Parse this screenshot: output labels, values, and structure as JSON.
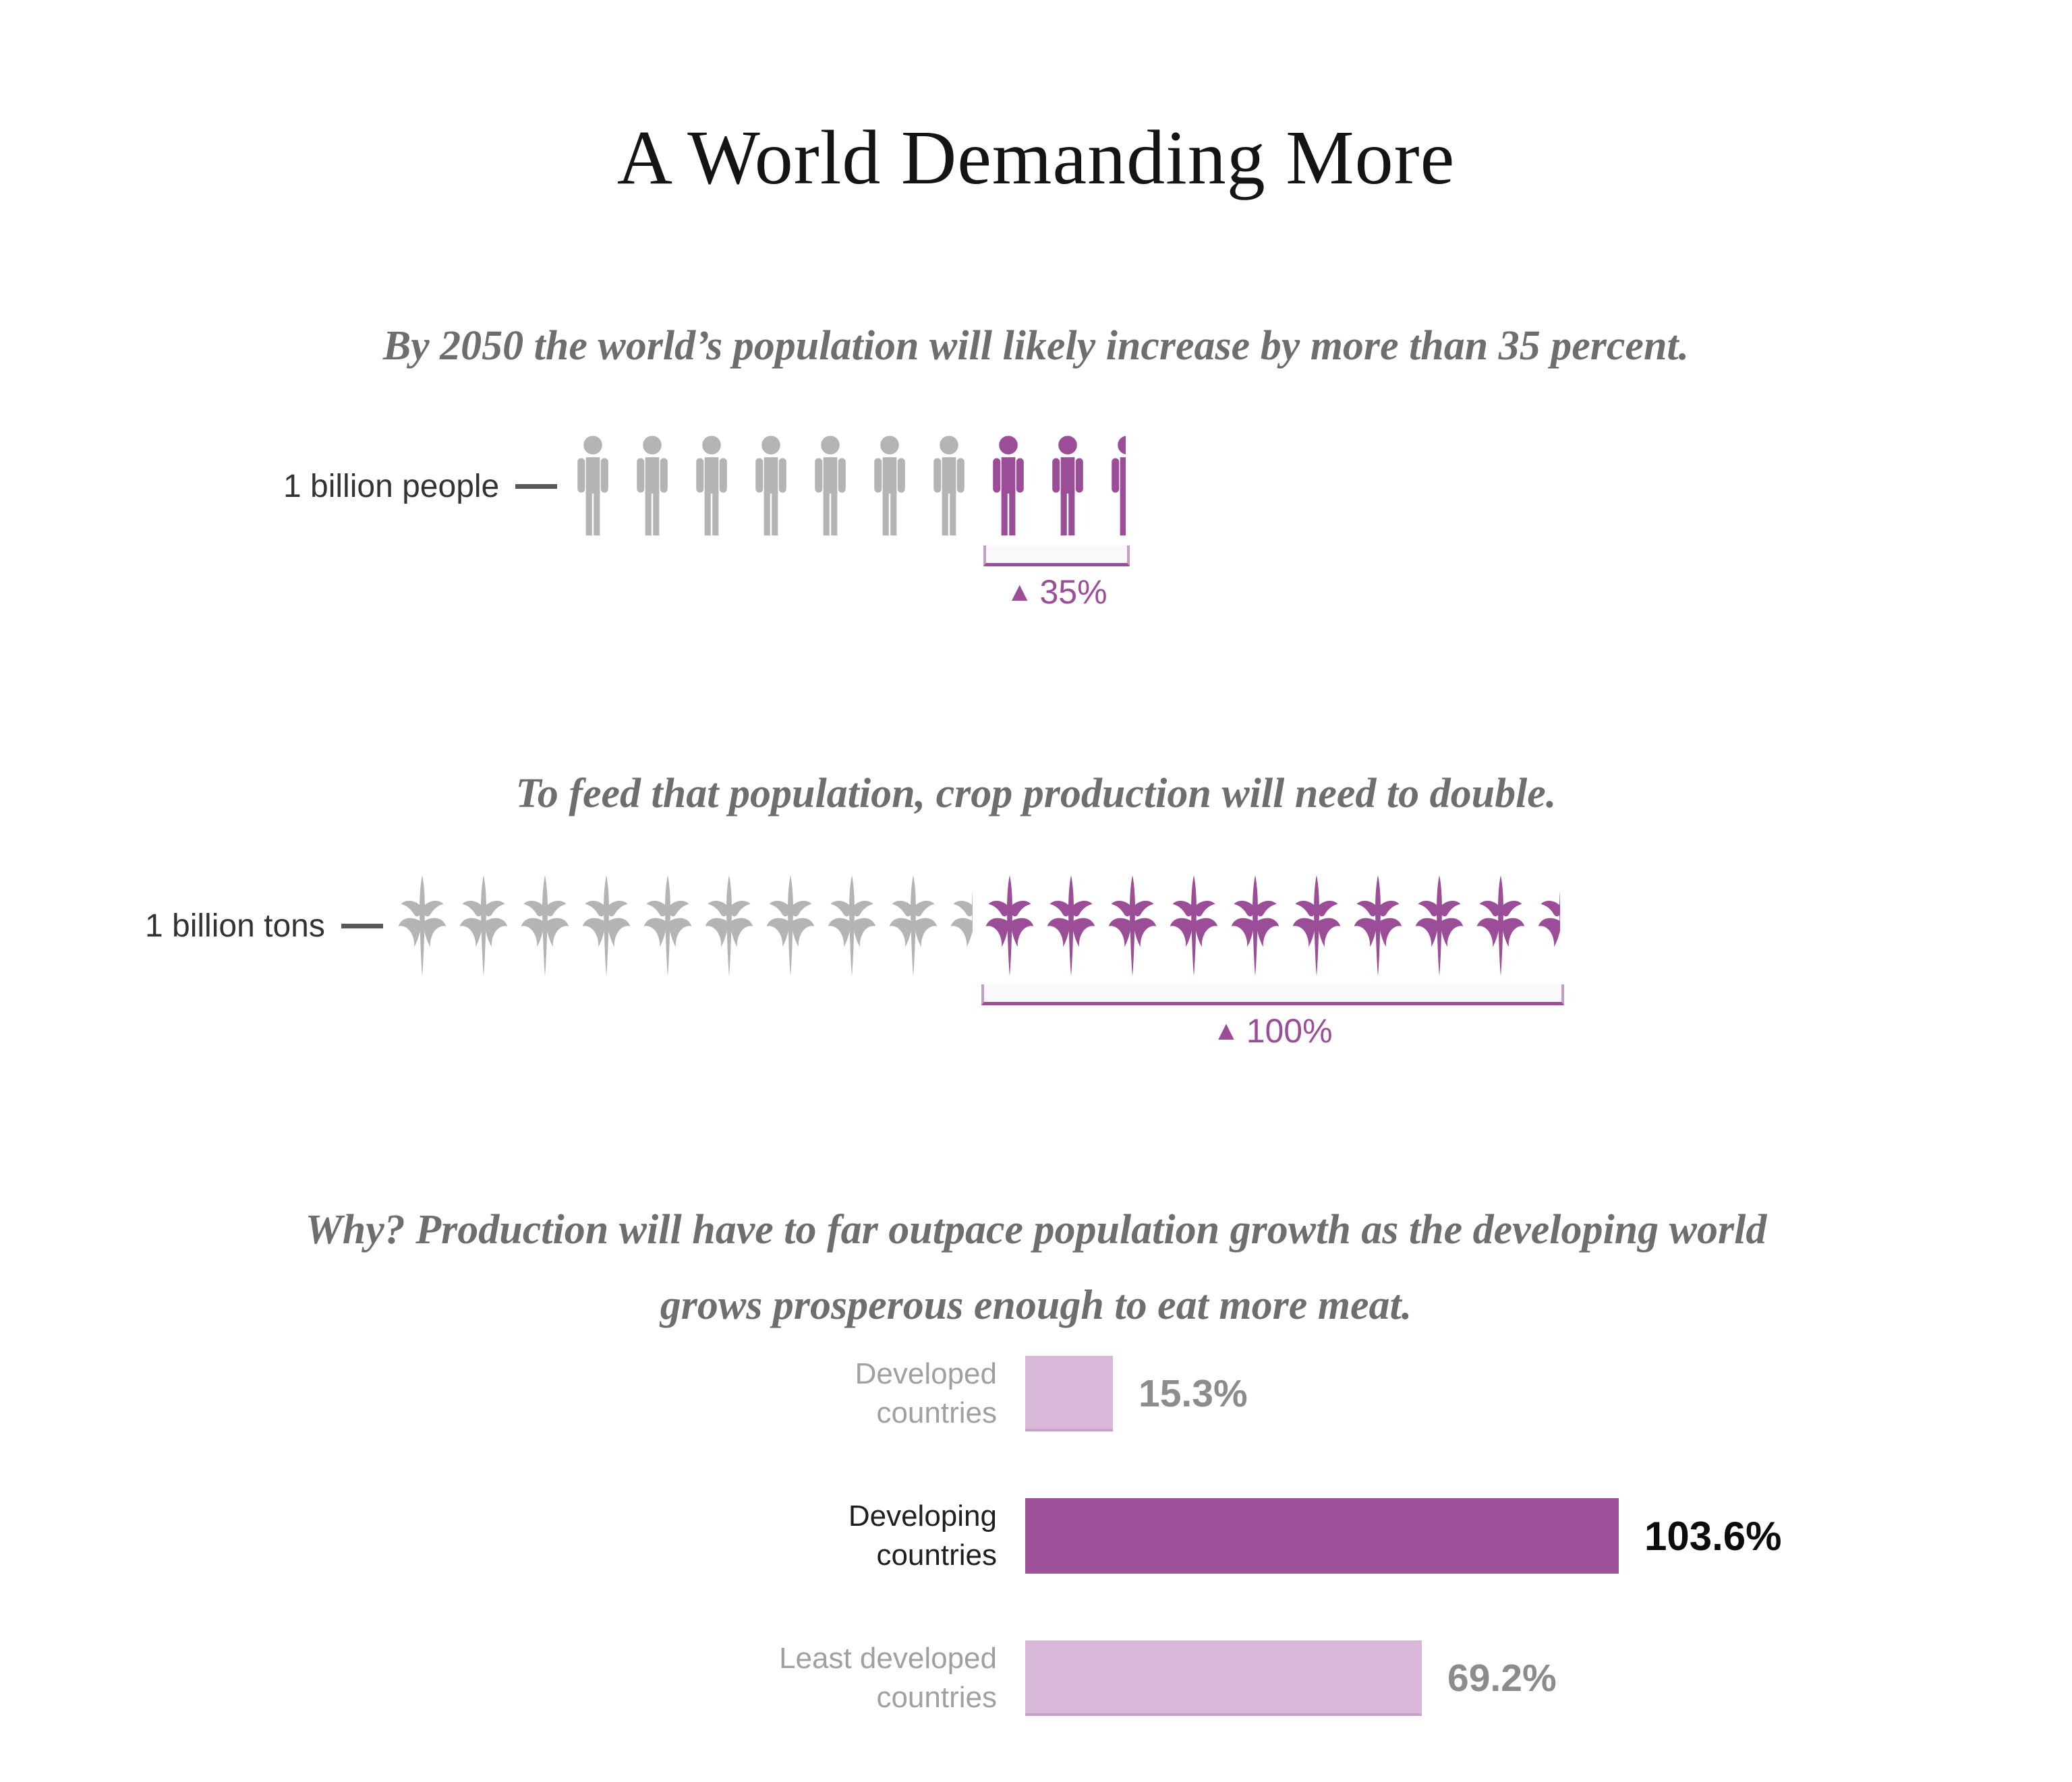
{
  "page": {
    "title": "A World Demanding More"
  },
  "texts": {
    "why_line1": "Why? Production will have to far outpace population growth as the developing world",
    "why_line2": "grows prosperous enough to eat more meat."
  },
  "colors": {
    "accent_purple": "#9b4d97",
    "dark_bar_purple": "#9d519a",
    "light_bar_purple": "#d8b7d9",
    "icon_gray": "#b4b3b6",
    "subtitle_gray": "#6e6e6e"
  },
  "chart_data": [
    {
      "id": "population-growth",
      "type": "pictograph",
      "title": "By 2050 the world’s population will likely increase by more than 35 percent.",
      "unit_label": "1 billion people",
      "icon": "person",
      "icon_unit_value": "1 billion people per icon",
      "series": [
        {
          "name": "current population",
          "count": 7,
          "color": "#b4b3b6"
        },
        {
          "name": "increase by 2050",
          "count": 2.5,
          "color": "#9b4d97"
        }
      ],
      "annotation": {
        "arrow": "▲",
        "text": "35%"
      }
    },
    {
      "id": "crop-production",
      "type": "pictograph",
      "title": "To feed that population, crop production will need to double.",
      "unit_label": "1 billion tons",
      "icon": "corn-plant",
      "icon_unit_value": "1 billion tons per icon",
      "series": [
        {
          "name": "current crop production",
          "count": 9.5,
          "color": "#b4b3b6"
        },
        {
          "name": "needed increase",
          "count": 9.5,
          "color": "#9b4d97"
        }
      ],
      "annotation": {
        "arrow": "▲",
        "text": "100%"
      }
    },
    {
      "id": "projected-demand-growth",
      "type": "bar",
      "orientation": "horizontal",
      "categories": [
        "Developed countries",
        "Developing countries",
        "Least developed countries"
      ],
      "label_lines": [
        [
          "Developed",
          "countries"
        ],
        [
          "Developing",
          "countries"
        ],
        [
          "Least developed",
          "countries"
        ]
      ],
      "values": [
        15.3,
        103.6,
        69.2
      ],
      "value_labels": [
        "15.3%",
        "103.6%",
        "69.2%"
      ],
      "emphasized_category": "Developing countries",
      "bar_colors": [
        "#d8b7d9",
        "#9d519a",
        "#d8b7d9"
      ],
      "xlim": [
        0,
        110
      ],
      "legend": "none",
      "grid": false
    }
  ]
}
